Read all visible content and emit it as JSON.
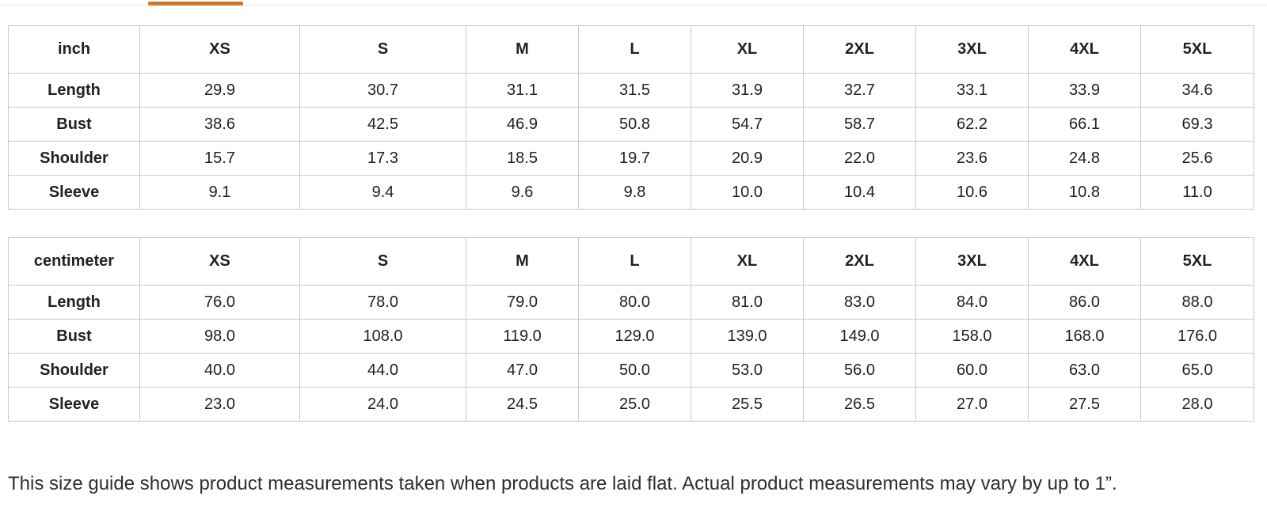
{
  "tab_strip": {
    "indicator_color": "#d2752c"
  },
  "tables": [
    {
      "unit_label": "inch",
      "sizes": [
        "XS",
        "S",
        "M",
        "L",
        "XL",
        "2XL",
        "3XL",
        "4XL",
        "5XL"
      ],
      "rows": [
        {
          "label": "Length",
          "values": [
            "29.9",
            "30.7",
            "31.1",
            "31.5",
            "31.9",
            "32.7",
            "33.1",
            "33.9",
            "34.6"
          ]
        },
        {
          "label": "Bust",
          "values": [
            "38.6",
            "42.5",
            "46.9",
            "50.8",
            "54.7",
            "58.7",
            "62.2",
            "66.1",
            "69.3"
          ]
        },
        {
          "label": "Shoulder",
          "values": [
            "15.7",
            "17.3",
            "18.5",
            "19.7",
            "20.9",
            "22.0",
            "23.6",
            "24.8",
            "25.6"
          ]
        },
        {
          "label": "Sleeve",
          "values": [
            "9.1",
            "9.4",
            "9.6",
            "9.8",
            "10.0",
            "10.4",
            "10.6",
            "10.8",
            "11.0"
          ]
        }
      ]
    },
    {
      "unit_label": "centimeter",
      "sizes": [
        "XS",
        "S",
        "M",
        "L",
        "XL",
        "2XL",
        "3XL",
        "4XL",
        "5XL"
      ],
      "rows": [
        {
          "label": "Length",
          "values": [
            "76.0",
            "78.0",
            "79.0",
            "80.0",
            "81.0",
            "83.0",
            "84.0",
            "86.0",
            "88.0"
          ]
        },
        {
          "label": "Bust",
          "values": [
            "98.0",
            "108.0",
            "119.0",
            "129.0",
            "139.0",
            "149.0",
            "158.0",
            "168.0",
            "176.0"
          ]
        },
        {
          "label": "Shoulder",
          "values": [
            "40.0",
            "44.0",
            "47.0",
            "50.0",
            "53.0",
            "56.0",
            "60.0",
            "63.0",
            "65.0"
          ]
        },
        {
          "label": "Sleeve",
          "values": [
            "23.0",
            "24.0",
            "24.5",
            "25.0",
            "25.5",
            "26.5",
            "27.0",
            "27.5",
            "28.0"
          ]
        }
      ]
    }
  ],
  "note": "This size guide shows product measurements taken when products are laid flat. Actual product measurements may vary by up to 1”."
}
